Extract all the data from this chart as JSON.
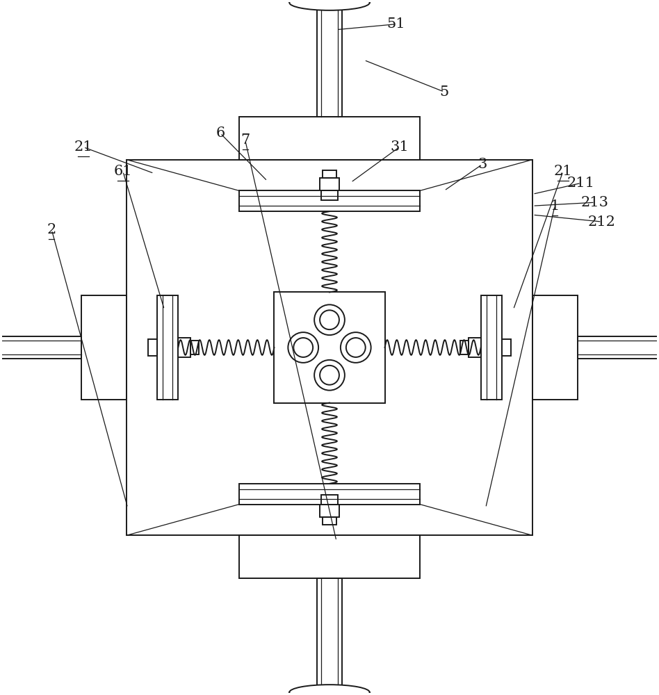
{
  "bg_color": "#ffffff",
  "lc": "#1a1a1a",
  "lw": 1.4,
  "tlw": 0.9,
  "figsize": [
    9.48,
    10.0
  ],
  "dpi": 100
}
